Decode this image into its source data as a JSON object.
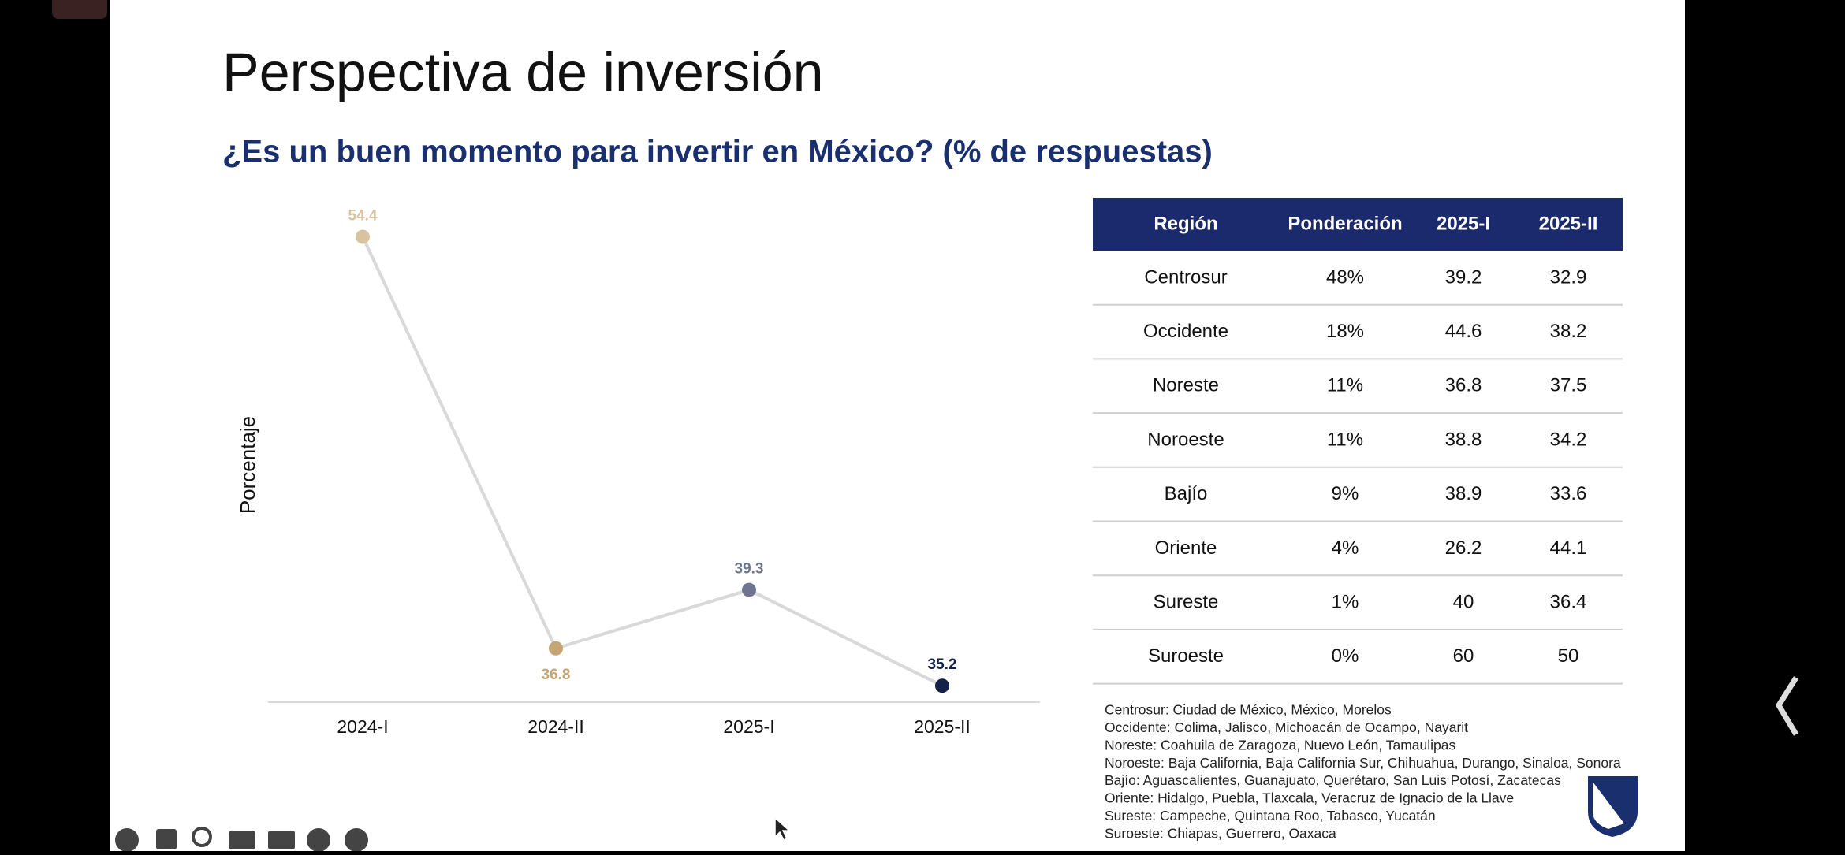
{
  "chart_data": {
    "type": "line",
    "title": "Perspectiva de inversión",
    "subtitle": "¿Es un buen momento para invertir en México? (% de respuestas)",
    "y_label": "Porcentaje",
    "categories": [
      "2024-I",
      "2024-II",
      "2025-I",
      "2025-II"
    ],
    "values": [
      54.4,
      36.8,
      39.3,
      35.2
    ],
    "line_color": "#d9d9d9",
    "point_colors": [
      "#d8c3a0",
      "#c4a574",
      "#6e7591",
      "#14224a"
    ],
    "ylim": [
      34.5,
      56
    ]
  },
  "table": {
    "header": [
      "Región",
      "Ponderación",
      "2025-I",
      "2025-II"
    ],
    "rows": [
      [
        "Centrosur",
        "48%",
        "39.2",
        "32.9"
      ],
      [
        "Occidente",
        "18%",
        "44.6",
        "38.2"
      ],
      [
        "Noreste",
        "11%",
        "36.8",
        "37.5"
      ],
      [
        "Noroeste",
        "11%",
        "38.8",
        "34.2"
      ],
      [
        "Bajío",
        "9%",
        "38.9",
        "33.6"
      ],
      [
        "Oriente",
        "4%",
        "26.2",
        "44.1"
      ],
      [
        "Sureste",
        "1%",
        "40",
        "36.4"
      ],
      [
        "Suroeste",
        "0%",
        "60",
        "50"
      ]
    ]
  },
  "notes": [
    "Centrosur: Ciudad de México, México, Morelos",
    "Occidente: Colima, Jalisco, Michoacán de Ocampo, Nayarit",
    "Noreste: Coahuila de Zaragoza, Nuevo León, Tamaulipas",
    "Noroeste: Baja California, Baja California Sur, Chihuahua, Durango, Sinaloa, Sonora",
    "Bajío: Aguascalientes, Guanajuato, Querétaro, San Luis Potosí, Zacatecas",
    "Oriente: Hidalgo, Puebla, Tlaxcala, Veracruz de Ignacio de la Llave",
    "Sureste: Campeche, Quintana Roo, Tabasco, Yucatán",
    "Suroeste: Chiapas, Guerrero, Oaxaca"
  ]
}
